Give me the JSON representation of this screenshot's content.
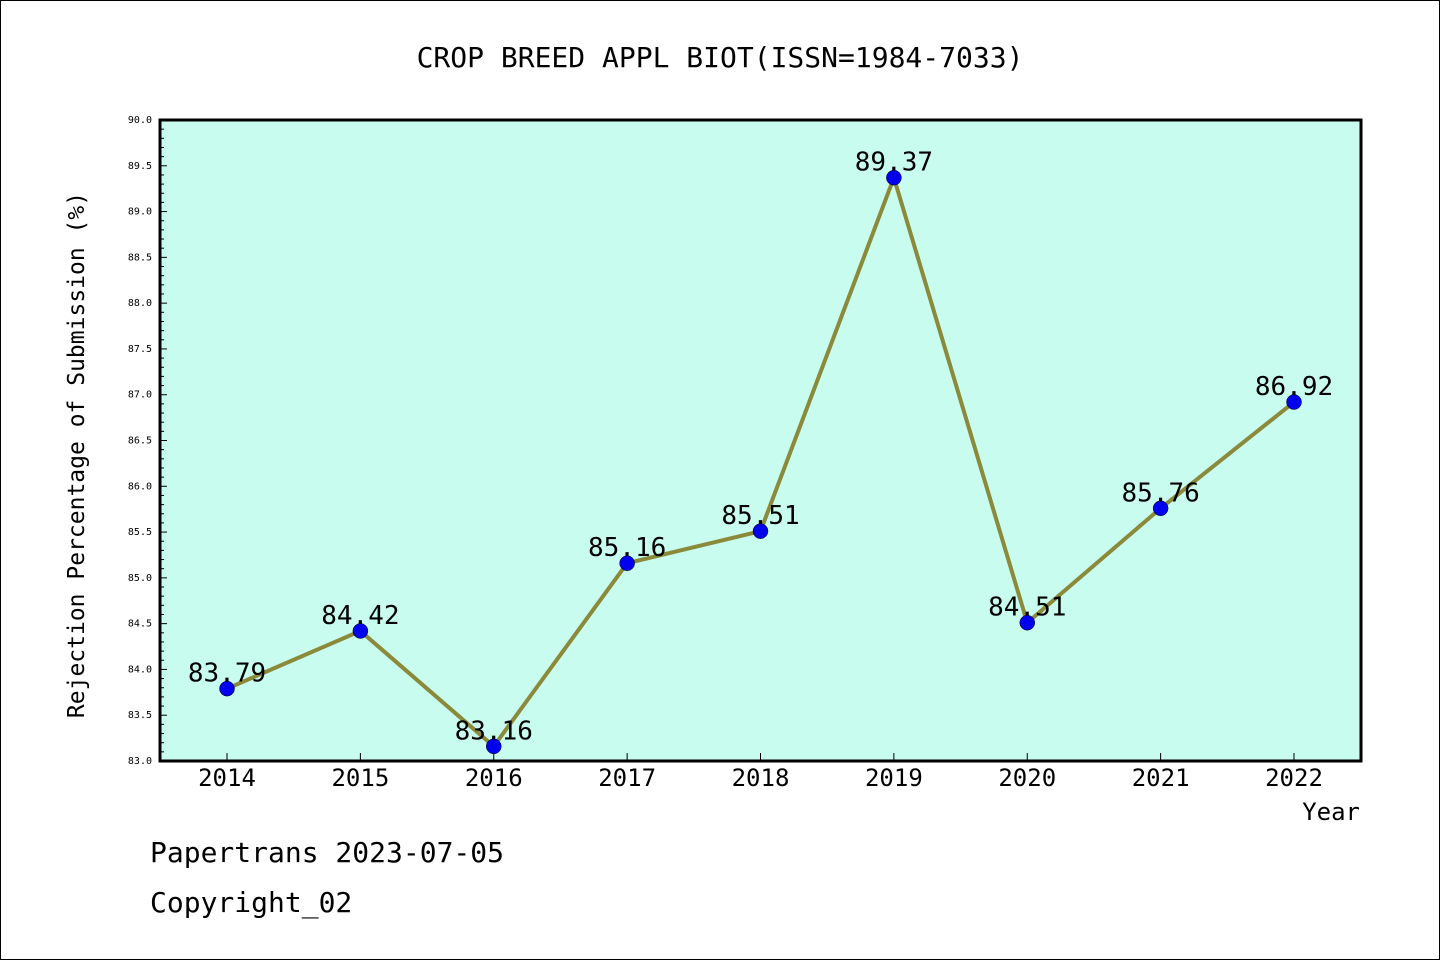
{
  "chart_data": {
    "type": "line",
    "title": "CROP BREED APPL BIOT(ISSN=1984-7033)",
    "xlabel": "Year",
    "ylabel": "Rejection Percentage of Submission (%)",
    "categories": [
      "2014",
      "2015",
      "2016",
      "2017",
      "2018",
      "2019",
      "2020",
      "2021",
      "2022"
    ],
    "values": [
      83.79,
      84.42,
      83.16,
      85.16,
      85.51,
      89.37,
      84.51,
      85.76,
      86.92
    ],
    "data_labels": [
      "83.79",
      "84.42",
      "83.16",
      "85.16",
      "85.51",
      "89.37",
      "84.51",
      "85.76",
      "86.92"
    ],
    "ylim": [
      83.0,
      90.0
    ],
    "yticks": [
      "83.0",
      "83.5",
      "84.0",
      "84.5",
      "85.0",
      "85.5",
      "86.0",
      "86.5",
      "87.0",
      "87.5",
      "88.0",
      "88.5",
      "89.0",
      "89.5",
      "90.0"
    ],
    "grid": false,
    "colors": {
      "plot_background": "#c8fcee",
      "line": "#8b8a3a",
      "marker": "#0000ee"
    }
  },
  "footer": {
    "line1": "Papertrans 2023-07-05",
    "line2": "Copyright_02"
  }
}
